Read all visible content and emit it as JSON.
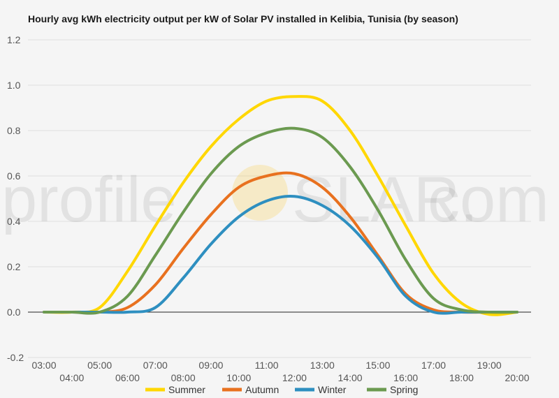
{
  "chart_data": {
    "type": "line",
    "title": "Hourly avg kWh electricity output per kW of Solar PV installed in Kelibia, Tunisia (by season)",
    "xlabel": "",
    "ylabel": "",
    "ylim": [
      -0.2,
      1.2
    ],
    "yticks": [
      -0.2,
      0.0,
      0.2,
      0.4,
      0.6,
      0.8,
      1.0,
      1.2
    ],
    "ytick_labels": [
      "-0.2",
      "0.0",
      "0.2",
      "0.4",
      "0.6",
      "0.8",
      "1.0",
      "1.2"
    ],
    "xlim": [
      3,
      20
    ],
    "xticks": [
      3,
      4,
      5,
      6,
      7,
      8,
      9,
      10,
      11,
      12,
      13,
      14,
      15,
      16,
      17,
      18,
      19,
      20
    ],
    "xtick_labels": [
      "03:00",
      "04:00",
      "05:00",
      "06:00",
      "07:00",
      "08:00",
      "09:00",
      "10:00",
      "11:00",
      "12:00",
      "13:00",
      "14:00",
      "15:00",
      "16:00",
      "17:00",
      "18:00",
      "19:00",
      "20:00"
    ],
    "grid": true,
    "legend_position": "bottom",
    "x": [
      3,
      4,
      5,
      6,
      7,
      8,
      9,
      10,
      11,
      12,
      13,
      14,
      15,
      16,
      17,
      18,
      19,
      20
    ],
    "series": [
      {
        "name": "Summer",
        "color": "#FFD700",
        "values": [
          0,
          0,
          0.02,
          0.18,
          0.38,
          0.57,
          0.73,
          0.85,
          0.93,
          0.95,
          0.93,
          0.8,
          0.6,
          0.38,
          0.17,
          0.04,
          -0.01,
          0
        ]
      },
      {
        "name": "Autumn",
        "color": "#E8711F",
        "values": [
          0,
          0,
          0,
          0.02,
          0.12,
          0.28,
          0.43,
          0.55,
          0.6,
          0.61,
          0.55,
          0.42,
          0.25,
          0.08,
          0.01,
          0,
          0,
          0
        ]
      },
      {
        "name": "Winter",
        "color": "#2E8FC0",
        "values": [
          0,
          0,
          0,
          0,
          0.02,
          0.15,
          0.3,
          0.42,
          0.49,
          0.51,
          0.47,
          0.38,
          0.24,
          0.07,
          0,
          0,
          0,
          0
        ]
      },
      {
        "name": "Spring",
        "color": "#6B9A50",
        "values": [
          0,
          0,
          0,
          0.07,
          0.25,
          0.44,
          0.61,
          0.73,
          0.79,
          0.81,
          0.77,
          0.64,
          0.45,
          0.23,
          0.06,
          0.01,
          0,
          0
        ]
      }
    ]
  },
  "watermark": {
    "prefix": "profile",
    "letters": [
      "S",
      "L",
      "A",
      "R",
      "."
    ],
    "suffix": "com",
    "sun_color": "#F9C623"
  }
}
